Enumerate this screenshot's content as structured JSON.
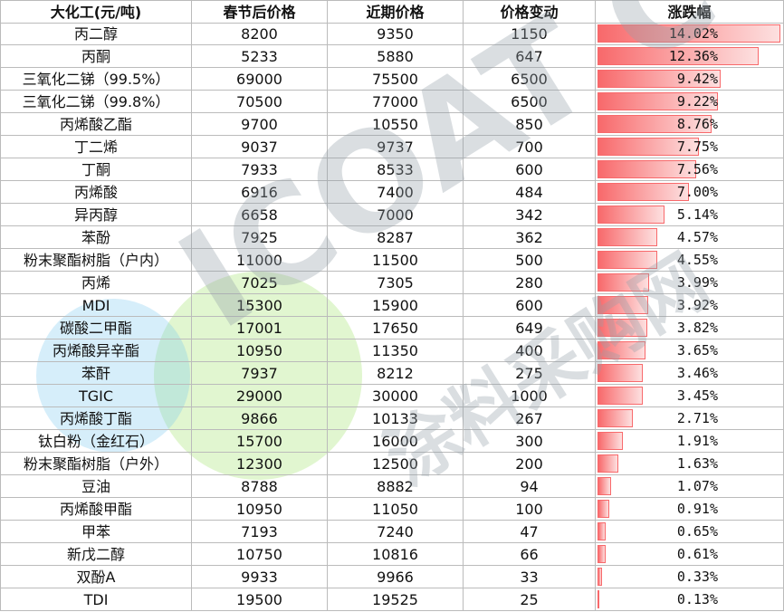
{
  "table": {
    "header": [
      "大化工(元/吨)",
      "春节后价格",
      "近期价格",
      "价格变动",
      "涨跌幅"
    ],
    "rows": [
      {
        "name": "丙二醇",
        "after": 8200,
        "recent": 9350,
        "change": 1150,
        "pct": {
          "value": 14.02,
          "label": "14.02%"
        }
      },
      {
        "name": "丙酮",
        "after": 5233,
        "recent": 5880,
        "change": 647,
        "pct": {
          "value": 12.36,
          "label": "12.36%"
        }
      },
      {
        "name": "三氧化二锑（99.5%）",
        "after": 69000,
        "recent": 75500,
        "change": 6500,
        "pct": {
          "value": 9.42,
          "label": "9.42%"
        }
      },
      {
        "name": "三氧化二锑（99.8%）",
        "after": 70500,
        "recent": 77000,
        "change": 6500,
        "pct": {
          "value": 9.22,
          "label": "9.22%"
        }
      },
      {
        "name": "丙烯酸乙酯",
        "after": 9700,
        "recent": 10550,
        "change": 850,
        "pct": {
          "value": 8.76,
          "label": "8.76%"
        }
      },
      {
        "name": "丁二烯",
        "after": 9037,
        "recent": 9737,
        "change": 700,
        "pct": {
          "value": 7.75,
          "label": "7.75%"
        }
      },
      {
        "name": "丁酮",
        "after": 7933,
        "recent": 8533,
        "change": 600,
        "pct": {
          "value": 7.56,
          "label": "7.56%"
        }
      },
      {
        "name": "丙烯酸",
        "after": 6916,
        "recent": 7400,
        "change": 484,
        "pct": {
          "value": 7.0,
          "label": "7.00%"
        }
      },
      {
        "name": "异丙醇",
        "after": 6658,
        "recent": 7000,
        "change": 342,
        "pct": {
          "value": 5.14,
          "label": "5.14%"
        }
      },
      {
        "name": "苯酚",
        "after": 7925,
        "recent": 8287,
        "change": 362,
        "pct": {
          "value": 4.57,
          "label": "4.57%"
        }
      },
      {
        "name": "粉末聚酯树脂（户内）",
        "after": 11000,
        "recent": 11500,
        "change": 500,
        "pct": {
          "value": 4.55,
          "label": "4.55%"
        }
      },
      {
        "name": "丙烯",
        "after": 7025,
        "recent": 7305,
        "change": 280,
        "pct": {
          "value": 3.99,
          "label": "3.99%"
        }
      },
      {
        "name": "MDI",
        "after": 15300,
        "recent": 15900,
        "change": 600,
        "pct": {
          "value": 3.92,
          "label": "3.92%"
        }
      },
      {
        "name": "碳酸二甲酯",
        "after": 17001,
        "recent": 17650,
        "change": 649,
        "pct": {
          "value": 3.82,
          "label": "3.82%"
        }
      },
      {
        "name": "丙烯酸异辛酯",
        "after": 10950,
        "recent": 11350,
        "change": 400,
        "pct": {
          "value": 3.65,
          "label": "3.65%"
        }
      },
      {
        "name": "苯酐",
        "after": 7937,
        "recent": 8212,
        "change": 275,
        "pct": {
          "value": 3.46,
          "label": "3.46%"
        }
      },
      {
        "name": "TGIC",
        "after": 29000,
        "recent": 30000,
        "change": 1000,
        "pct": {
          "value": 3.45,
          "label": "3.45%"
        }
      },
      {
        "name": "丙烯酸丁酯",
        "after": 9866,
        "recent": 10133,
        "change": 267,
        "pct": {
          "value": 2.71,
          "label": "2.71%"
        }
      },
      {
        "name": "钛白粉（金红石）",
        "after": 15700,
        "recent": 16000,
        "change": 300,
        "pct": {
          "value": 1.91,
          "label": "1.91%"
        }
      },
      {
        "name": "粉末聚酯树脂（户外）",
        "after": 12300,
        "recent": 12500,
        "change": 200,
        "pct": {
          "value": 1.63,
          "label": "1.63%"
        }
      },
      {
        "name": "豆油",
        "after": 8788,
        "recent": 8882,
        "change": 94,
        "pct": {
          "value": 1.07,
          "label": "1.07%"
        }
      },
      {
        "name": "丙烯酸甲酯",
        "after": 10950,
        "recent": 11050,
        "change": 100,
        "pct": {
          "value": 0.91,
          "label": "0.91%"
        }
      },
      {
        "name": "甲苯",
        "after": 7193,
        "recent": 7240,
        "change": 47,
        "pct": {
          "value": 0.65,
          "label": "0.65%"
        }
      },
      {
        "name": "新戊二醇",
        "after": 10750,
        "recent": 10816,
        "change": 66,
        "pct": {
          "value": 0.61,
          "label": "0.61%"
        }
      },
      {
        "name": "双酚A",
        "after": 9933,
        "recent": 9966,
        "change": 33,
        "pct": {
          "value": 0.33,
          "label": "0.33%"
        }
      },
      {
        "name": "TDI",
        "after": 19500,
        "recent": 19525,
        "change": 25,
        "pct": {
          "value": 0.13,
          "label": "0.13%"
        }
      }
    ]
  },
  "watermark": {
    "logo": "ICOAT CC",
    "site": "涂料采购网"
  }
}
